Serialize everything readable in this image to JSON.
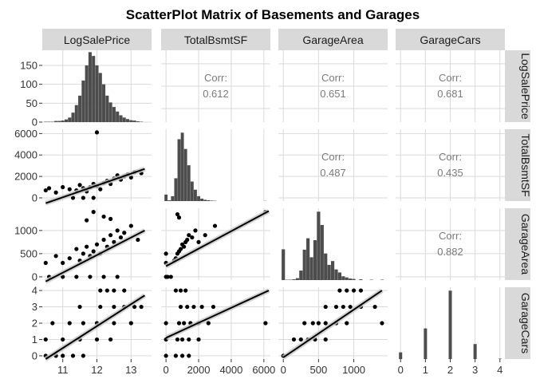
{
  "chart_data": {
    "type": "scatterplot-matrix",
    "title": "ScatterPlot Matrix of Basements and Garages",
    "variables": [
      "LogSalePrice",
      "TotalBsmtSF",
      "GarageArea",
      "GarageCars"
    ],
    "colors": {
      "panel_bg": "#ffffff",
      "grid": "#d9d9d9",
      "strip_bg": "#d9d9d9",
      "bars": "#4d4d4d",
      "points": "#000000",
      "line": "#000000",
      "band": "#c8c8c8"
    },
    "axes": {
      "LogSalePrice": {
        "range": [
          10.4,
          13.6
        ],
        "ticks": [
          11,
          12,
          13
        ],
        "tick_labels": [
          "11",
          "12",
          "13"
        ]
      },
      "TotalBsmtSF": {
        "range": [
          -300,
          6400
        ],
        "ticks": [
          0,
          2000,
          4000,
          6000
        ],
        "tick_labels": [
          "0",
          "2000",
          "4000",
          "6000"
        ]
      },
      "GarageArea": {
        "range": [
          -70,
          1480
        ],
        "ticks": [
          0,
          500,
          1000
        ],
        "tick_labels": [
          "0",
          "500",
          "1000"
        ]
      },
      "GarageCars": {
        "range": [
          -0.2,
          4.2
        ],
        "ticks": [
          0,
          1,
          2,
          3,
          4
        ],
        "tick_labels": [
          "0",
          "1",
          "2",
          "3",
          "4"
        ]
      }
    },
    "diagonal_histogram_y": {
      "LogSalePrice": {
        "range": [
          0,
          190
        ],
        "ticks": [
          0,
          50,
          100,
          150
        ],
        "tick_labels": [
          "0",
          "50",
          "100",
          "150"
        ]
      }
    },
    "correlations": [
      {
        "row": "LogSalePrice",
        "col": "TotalBsmtSF",
        "label": "Corr:",
        "value": "0.612"
      },
      {
        "row": "LogSalePrice",
        "col": "GarageArea",
        "label": "Corr:",
        "value": "0.651"
      },
      {
        "row": "LogSalePrice",
        "col": "GarageCars",
        "label": "Corr:",
        "value": "0.681"
      },
      {
        "row": "TotalBsmtSF",
        "col": "GarageArea",
        "label": "Corr:",
        "value": "0.487"
      },
      {
        "row": "TotalBsmtSF",
        "col": "GarageCars",
        "label": "Corr:",
        "value": "0.435"
      },
      {
        "row": "GarageArea",
        "col": "GarageCars",
        "label": "Corr:",
        "value": "0.882"
      }
    ],
    "histograms": {
      "LogSalePrice": {
        "x": [
          10.5,
          10.6,
          10.7,
          10.8,
          10.9,
          11.0,
          11.1,
          11.2,
          11.3,
          11.4,
          11.5,
          11.6,
          11.7,
          11.8,
          11.9,
          12.0,
          12.1,
          12.2,
          12.3,
          12.4,
          12.5,
          12.6,
          12.7,
          12.8,
          12.9,
          13.0,
          13.1,
          13.2,
          13.3
        ],
        "counts": [
          1,
          1,
          1,
          3,
          3,
          4,
          7,
          12,
          25,
          45,
          70,
          110,
          150,
          185,
          175,
          150,
          130,
          100,
          70,
          52,
          40,
          28,
          18,
          12,
          8,
          5,
          4,
          2,
          1
        ]
      },
      "TotalBsmtSF": {
        "x": [
          0,
          200,
          400,
          600,
          800,
          1000,
          1200,
          1400,
          1600,
          1800,
          2000,
          2200,
          2400,
          2600,
          2800,
          3000,
          6100
        ],
        "counts": [
          40,
          5,
          30,
          140,
          380,
          420,
          320,
          220,
          120,
          70,
          30,
          15,
          8,
          5,
          3,
          2,
          1
        ]
      },
      "GarageArea": {
        "x": [
          0,
          50,
          100,
          150,
          200,
          250,
          300,
          350,
          400,
          450,
          500,
          550,
          600,
          650,
          700,
          750,
          800,
          850,
          900,
          950,
          1000,
          1100,
          1250,
          1400
        ],
        "counts": [
          81,
          1,
          1,
          2,
          5,
          25,
          80,
          110,
          60,
          105,
          180,
          145,
          70,
          40,
          50,
          28,
          20,
          10,
          7,
          4,
          3,
          2,
          1,
          1
        ]
      },
      "GarageCars": {
        "x": [
          0,
          1,
          2,
          3,
          4
        ],
        "counts": [
          81,
          369,
          824,
          181,
          5
        ]
      }
    },
    "regression_lines": [
      {
        "row": "TotalBsmtSF",
        "col": "LogSalePrice",
        "x": [
          10.5,
          13.4
        ],
        "y": [
          -500,
          2700
        ]
      },
      {
        "row": "GarageArea",
        "col": "LogSalePrice",
        "x": [
          10.5,
          13.4
        ],
        "y": [
          -100,
          1000
        ]
      },
      {
        "row": "GarageArea",
        "col": "TotalBsmtSF",
        "x": [
          0,
          6300
        ],
        "y": [
          230,
          1420
        ]
      },
      {
        "row": "GarageCars",
        "col": "LogSalePrice",
        "x": [
          10.5,
          13.4
        ],
        "y": [
          -0.2,
          3.7
        ]
      },
      {
        "row": "GarageCars",
        "col": "TotalBsmtSF",
        "x": [
          0,
          6300
        ],
        "y": [
          1.1,
          4.0
        ]
      },
      {
        "row": "GarageCars",
        "col": "GarageArea",
        "x": [
          0,
          1400
        ],
        "y": [
          -0.1,
          4.0
        ]
      }
    ],
    "scatter_points": {
      "TotalBsmtSF_vs_LogSalePrice": [
        [
          10.5,
          700
        ],
        [
          10.6,
          900
        ],
        [
          10.8,
          500
        ],
        [
          11.0,
          1000
        ],
        [
          11.2,
          800
        ],
        [
          11.4,
          700
        ],
        [
          11.5,
          1200
        ],
        [
          11.6,
          900
        ],
        [
          11.7,
          600
        ],
        [
          11.8,
          1000
        ],
        [
          11.9,
          1300
        ],
        [
          12.0,
          1100
        ],
        [
          12.1,
          800
        ],
        [
          12.2,
          1400
        ],
        [
          12.3,
          1600
        ],
        [
          12.4,
          1300
        ],
        [
          12.5,
          1800
        ],
        [
          12.6,
          2100
        ],
        [
          12.7,
          1700
        ],
        [
          12.8,
          2000
        ],
        [
          12.9,
          2200
        ],
        [
          13.0,
          1900
        ],
        [
          13.1,
          2400
        ],
        [
          13.3,
          2300
        ],
        [
          11.3,
          0
        ],
        [
          11.6,
          0
        ],
        [
          11.9,
          0
        ],
        [
          12.0,
          6110
        ]
      ],
      "GarageArea_vs_LogSalePrice": [
        [
          10.5,
          300
        ],
        [
          10.6,
          0
        ],
        [
          10.8,
          450
        ],
        [
          11.0,
          300
        ],
        [
          11.2,
          400
        ],
        [
          11.4,
          600
        ],
        [
          11.5,
          350
        ],
        [
          11.6,
          500
        ],
        [
          11.7,
          650
        ],
        [
          11.8,
          450
        ],
        [
          11.9,
          550
        ],
        [
          12.0,
          700
        ],
        [
          12.1,
          500
        ],
        [
          12.2,
          800
        ],
        [
          12.3,
          650
        ],
        [
          12.4,
          900
        ],
        [
          12.5,
          750
        ],
        [
          12.6,
          1000
        ],
        [
          12.7,
          850
        ],
        [
          12.8,
          950
        ],
        [
          13.0,
          1100
        ],
        [
          13.2,
          800
        ],
        [
          11.0,
          0
        ],
        [
          11.4,
          0
        ],
        [
          11.8,
          0
        ],
        [
          12.2,
          0
        ],
        [
          12.6,
          0
        ],
        [
          11.9,
          1400
        ],
        [
          12.2,
          1300
        ],
        [
          12.4,
          1250
        ],
        [
          11.7,
          1220
        ]
      ],
      "GarageArea_vs_TotalBsmtSF": [
        [
          0,
          0
        ],
        [
          0,
          300
        ],
        [
          0,
          500
        ],
        [
          100,
          0
        ],
        [
          300,
          0
        ],
        [
          500,
          350
        ],
        [
          600,
          400
        ],
        [
          700,
          500
        ],
        [
          800,
          550
        ],
        [
          900,
          600
        ],
        [
          1000,
          700
        ],
        [
          1100,
          650
        ],
        [
          1200,
          750
        ],
        [
          1300,
          800
        ],
        [
          1400,
          900
        ],
        [
          1600,
          850
        ],
        [
          1800,
          1000
        ],
        [
          2000,
          750
        ],
        [
          2400,
          900
        ],
        [
          3000,
          1100
        ],
        [
          6100,
          1400
        ],
        [
          700,
          1350
        ],
        [
          800,
          1280
        ]
      ],
      "GarageCars_vs_LogSalePrice": [
        [
          10.5,
          0
        ],
        [
          10.8,
          0
        ],
        [
          11.0,
          0
        ],
        [
          11.3,
          0
        ],
        [
          11.6,
          0
        ],
        [
          10.5,
          1
        ],
        [
          11.0,
          1
        ],
        [
          11.5,
          1
        ],
        [
          12.0,
          1
        ],
        [
          12.4,
          1
        ],
        [
          10.7,
          2
        ],
        [
          11.2,
          2
        ],
        [
          11.6,
          2
        ],
        [
          12.0,
          2
        ],
        [
          12.5,
          2
        ],
        [
          13.0,
          2
        ],
        [
          11.5,
          3
        ],
        [
          12.1,
          3
        ],
        [
          12.5,
          3
        ],
        [
          12.8,
          3
        ],
        [
          13.1,
          3
        ],
        [
          13.3,
          3
        ],
        [
          12.1,
          4
        ],
        [
          12.3,
          4
        ],
        [
          12.5,
          4
        ],
        [
          12.8,
          4
        ]
      ],
      "GarageCars_vs_TotalBsmtSF": [
        [
          0,
          0
        ],
        [
          600,
          0
        ],
        [
          1000,
          0
        ],
        [
          1400,
          0
        ],
        [
          0,
          1
        ],
        [
          700,
          1
        ],
        [
          1000,
          1
        ],
        [
          1400,
          1
        ],
        [
          2000,
          1
        ],
        [
          0,
          2
        ],
        [
          800,
          2
        ],
        [
          1100,
          2
        ],
        [
          1500,
          2
        ],
        [
          2000,
          2
        ],
        [
          2600,
          2
        ],
        [
          6100,
          2
        ],
        [
          900,
          3
        ],
        [
          1300,
          3
        ],
        [
          1700,
          3
        ],
        [
          2200,
          3
        ],
        [
          2900,
          3
        ],
        [
          600,
          4
        ],
        [
          900,
          4
        ],
        [
          1200,
          4
        ]
      ],
      "GarageCars_vs_GarageArea": [
        [
          0,
          0
        ],
        [
          150,
          1
        ],
        [
          250,
          1
        ],
        [
          350,
          1
        ],
        [
          450,
          1
        ],
        [
          600,
          1
        ],
        [
          300,
          2
        ],
        [
          420,
          2
        ],
        [
          500,
          2
        ],
        [
          600,
          2
        ],
        [
          750,
          2
        ],
        [
          900,
          2
        ],
        [
          1400,
          2
        ],
        [
          600,
          3
        ],
        [
          750,
          3
        ],
        [
          850,
          3
        ],
        [
          950,
          3
        ],
        [
          1100,
          3
        ],
        [
          1300,
          3
        ],
        [
          800,
          4
        ],
        [
          900,
          4
        ],
        [
          1000,
          4
        ],
        [
          1100,
          4
        ]
      ]
    }
  }
}
